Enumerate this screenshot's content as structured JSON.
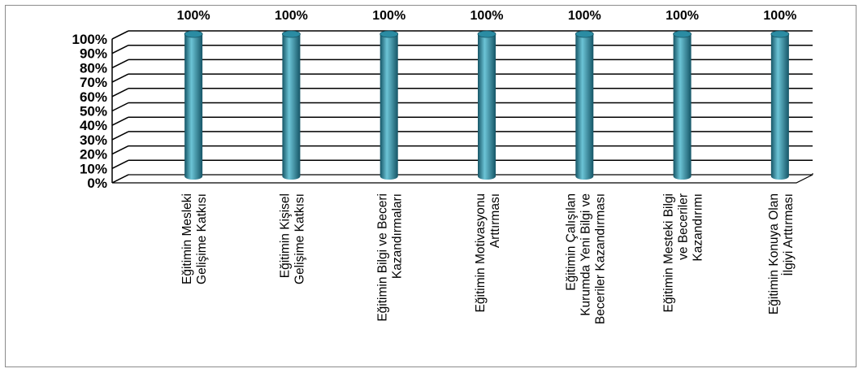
{
  "chart_data": {
    "type": "bar",
    "style": "3d-cylinder",
    "categories": [
      [
        "Eğitimin Mesleki",
        "Gelişime Katkısı"
      ],
      [
        "Eğitimin Kişisel",
        "Gelişime Katkısı"
      ],
      [
        "Eğitimin Bilgi ve Beceri",
        "Kazandırmaları"
      ],
      [
        "Eğitimin Motivasyonu",
        "Arttırması"
      ],
      [
        "Eğitimin Çalışılan",
        "Kurumda Yeni Bilgi ve",
        "Beceriler Kazandırması"
      ],
      [
        "Eğitimin Mesteki Bilgi",
        "ve Beceriler",
        "Kazandırımı"
      ],
      [
        "Eğitimin Konuya Olan",
        "İlgiyi Arttırması"
      ]
    ],
    "values": [
      100,
      100,
      100,
      100,
      100,
      100,
      100
    ],
    "data_labels": [
      "100%",
      "100%",
      "100%",
      "100%",
      "100%",
      "100%",
      "100%"
    ],
    "y_ticks": [
      "0%",
      "10%",
      "20%",
      "30%",
      "40%",
      "50%",
      "60%",
      "70%",
      "80%",
      "90%",
      "100%"
    ],
    "ylim": [
      0,
      100
    ],
    "grid": true,
    "legend": "none",
    "colors": {
      "bar": "#2b8ca3",
      "bar_light": "#6cc4d6",
      "bar_dark": "#155566",
      "grid": "#000000"
    }
  }
}
